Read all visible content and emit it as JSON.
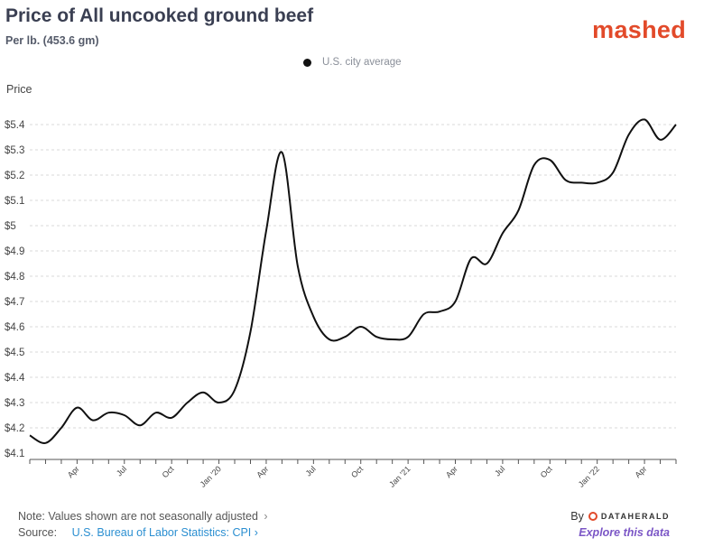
{
  "header": {
    "title": "Price of All uncooked ground beef",
    "subtitle": "Per lb. (453.6 gm)",
    "brand": "mashed"
  },
  "legend": {
    "label": "U.S. city average"
  },
  "footer": {
    "note": "Note: Values shown are not seasonally adjusted",
    "note_chevron": "›",
    "source_label": "Source:",
    "source_text": "U.S. Bureau of Labor Statistics: CPI",
    "source_chevron": "›",
    "by_label": "By",
    "by_brand": "DATAHERALD",
    "explore": "Explore this data"
  },
  "colors": {
    "line": "#111111",
    "grid": "#d9d9d9",
    "brand": "#e24a2a",
    "link": "#2b8fd1",
    "explore": "#7b56c6"
  },
  "chart_data": {
    "type": "line",
    "title": "Price of All uncooked ground beef",
    "subtitle": "Per lb. (453.6 gm)",
    "ylabel": "Price",
    "xlabel": "",
    "ylim": [
      4.1,
      5.4
    ],
    "yticks": [
      4.1,
      4.2,
      4.3,
      4.4,
      4.5,
      4.6,
      4.7,
      4.8,
      4.9,
      5,
      5.1,
      5.2,
      5.3,
      5.4
    ],
    "ytick_labels": [
      "$4.1",
      "$4.2",
      "$4.3",
      "$4.4",
      "$4.5",
      "$4.6",
      "$4.7",
      "$4.8",
      "$4.9",
      "$5",
      "$5.1",
      "$5.2",
      "$5.3",
      "$5.4"
    ],
    "grid": "horizontal",
    "x_tick_labels": [
      "Apr",
      "Jul",
      "Oct",
      "Jan '20",
      "Apr",
      "Jul",
      "Oct",
      "Jan '21",
      "Apr",
      "Jul",
      "Oct",
      "Jan '22",
      "Apr"
    ],
    "x": [
      "2019-01",
      "2019-02",
      "2019-03",
      "2019-04",
      "2019-05",
      "2019-06",
      "2019-07",
      "2019-08",
      "2019-09",
      "2019-10",
      "2019-11",
      "2019-12",
      "2020-01",
      "2020-02",
      "2020-03",
      "2020-04",
      "2020-05",
      "2020-06",
      "2020-07",
      "2020-08",
      "2020-09",
      "2020-10",
      "2020-11",
      "2020-12",
      "2021-01",
      "2021-02",
      "2021-03",
      "2021-04",
      "2021-05",
      "2021-06",
      "2021-07",
      "2021-08",
      "2021-09",
      "2021-10",
      "2021-11",
      "2021-12",
      "2022-01",
      "2022-02",
      "2022-03",
      "2022-04",
      "2022-05",
      "2022-06"
    ],
    "series": [
      {
        "name": "U.S. city average",
        "values": [
          4.17,
          4.14,
          4.2,
          4.28,
          4.23,
          4.26,
          4.25,
          4.21,
          4.26,
          4.24,
          4.3,
          4.34,
          4.3,
          4.35,
          4.58,
          4.98,
          5.29,
          4.84,
          4.64,
          4.55,
          4.56,
          4.6,
          4.56,
          4.55,
          4.56,
          4.65,
          4.66,
          4.7,
          4.87,
          4.85,
          4.97,
          5.06,
          5.24,
          5.26,
          5.18,
          5.17,
          5.17,
          5.21,
          5.36,
          5.42,
          5.34,
          5.4
        ]
      }
    ]
  }
}
